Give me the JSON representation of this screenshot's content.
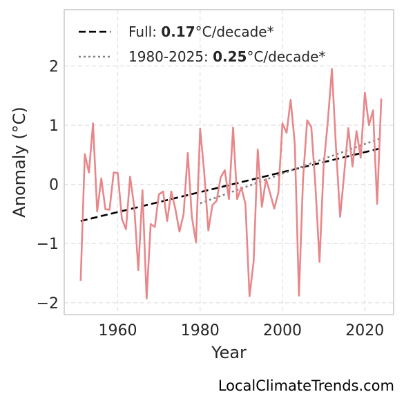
{
  "watermark": "LocalClimateTrends.com",
  "colors": {
    "series": "#e8878a",
    "full_trend": "#000000",
    "recent_trend": "#808080",
    "grid": "#e0e0e0",
    "frame": "#c8c8c8"
  },
  "chart_data": {
    "type": "line",
    "title": "",
    "xlabel": "Year",
    "ylabel": "Anomaly (°C)",
    "xlim": [
      1947,
      2027
    ],
    "ylim": [
      -2.2,
      2.95
    ],
    "xticks": [
      1960,
      1980,
      2000,
      2020
    ],
    "xtick_labels": [
      "1960",
      "1980",
      "2000",
      "2020"
    ],
    "yticks": [
      2,
      1,
      0,
      -1,
      -2
    ],
    "ytick_labels": [
      "2",
      "1",
      "0",
      "−1",
      "−2"
    ],
    "grid": true,
    "legend_placement": "top-left",
    "series": [
      {
        "x": [
          1951,
          1952,
          1953,
          1954,
          1955,
          1956,
          1957,
          1958,
          1959,
          1960,
          1961,
          1962,
          1963,
          1964,
          1965,
          1966,
          1967,
          1968,
          1969,
          1970,
          1971,
          1972,
          1973,
          1974,
          1975,
          1976,
          1977,
          1978,
          1979,
          1980,
          1981,
          1982,
          1983,
          1984,
          1985,
          1986,
          1987,
          1988,
          1989,
          1990,
          1991,
          1992,
          1993,
          1994,
          1995,
          1996,
          1997,
          1998,
          1999,
          2000,
          2001,
          2002,
          2003,
          2004,
          2005,
          2006,
          2007,
          2008,
          2009,
          2010,
          2011,
          2012,
          2013,
          2014,
          2015,
          2016,
          2017,
          2018,
          2019,
          2020,
          2021,
          2022,
          2023,
          2024
        ],
        "y": [
          -1.63,
          0.51,
          0.2,
          1.03,
          -0.46,
          0.1,
          -0.42,
          -0.43,
          0.2,
          0.19,
          -0.58,
          -0.76,
          0.13,
          -0.38,
          -1.45,
          -0.1,
          -1.93,
          -0.67,
          -0.72,
          -0.17,
          -0.12,
          -0.62,
          -0.12,
          -0.42,
          -0.8,
          -0.5,
          0.53,
          -0.55,
          -0.98,
          0.94,
          0.2,
          -0.78,
          -0.35,
          -0.28,
          0.12,
          0.24,
          -0.25,
          0.96,
          -0.25,
          -0.05,
          -0.33,
          -1.89,
          -1.3,
          0.59,
          -0.38,
          0.09,
          -0.15,
          -0.41,
          -0.14,
          1.03,
          0.87,
          1.43,
          0.68,
          -1.88,
          0.09,
          1.08,
          0.97,
          -0.02,
          -1.31,
          0.31,
          1.05,
          1.95,
          0.63,
          -0.55,
          0.18,
          0.95,
          0.3,
          0.9,
          0.45,
          1.55,
          1.0,
          1.25,
          -0.33,
          1.45
        ]
      }
    ],
    "trends": [
      {
        "label_prefix": "Full: ",
        "rate": "0.17",
        "label_suffix": "°C/decade*",
        "style": "dashed",
        "x": [
          1951,
          2024
        ],
        "y": [
          -0.62,
          0.61
        ]
      },
      {
        "label_prefix": "1980-2025: ",
        "rate": "0.25",
        "label_suffix": "°C/decade*",
        "style": "dotted",
        "x": [
          1980,
          2024
        ],
        "y": [
          -0.32,
          0.78
        ]
      }
    ]
  }
}
